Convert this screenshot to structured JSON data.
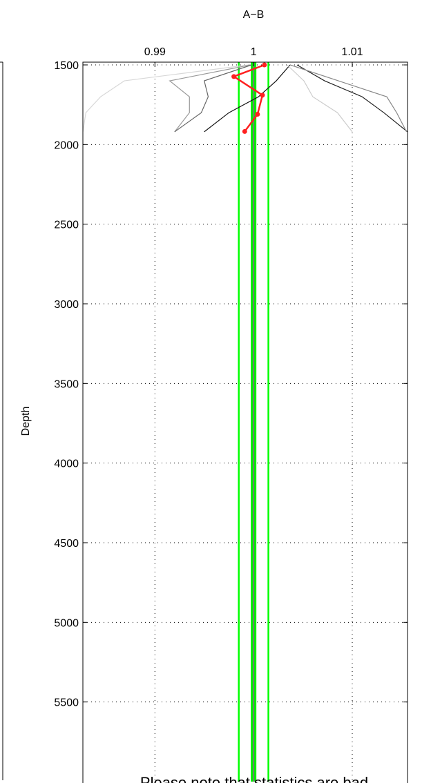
{
  "chart_data": {
    "type": "line",
    "title": "A−B",
    "ylabel": "Depth",
    "annotation": "Please note that statistics are bad",
    "annotation_color": "#ff0000",
    "xlim": [
      0.9827,
      1.0156
    ],
    "xticks": [
      0.99,
      1,
      1.01
    ],
    "ylim": [
      1500,
      6000
    ],
    "yticks": [
      1500,
      2000,
      2500,
      3000,
      3500,
      4000,
      4500,
      5000,
      5500
    ],
    "y_reversed": true,
    "grid": true,
    "vlines": [
      {
        "x": 0.9985,
        "color": "#00ff00",
        "width": 2.5
      },
      {
        "x": 1.0015,
        "color": "#00ff00",
        "width": 2.5
      },
      {
        "x": 1.0,
        "color": "#00ee00",
        "width": 8
      },
      {
        "x": 1.0,
        "color": "#777777",
        "width": 2
      }
    ],
    "series": [
      {
        "color": "#d8d8d8",
        "x": [
          0.9995,
          0.9869,
          0.9845,
          0.983,
          0.9827
        ],
        "values": [
          1500,
          1600,
          1700,
          1800,
          1920
        ]
      },
      {
        "color": "#999999",
        "x": [
          0.9997,
          0.9915,
          0.9935,
          0.9935,
          0.992
        ],
        "values": [
          1500,
          1600,
          1700,
          1800,
          1920
        ]
      },
      {
        "color": "#666666",
        "x": [
          0.9998,
          0.995,
          0.9954,
          0.9947,
          0.992
        ],
        "values": [
          1500,
          1600,
          1700,
          1800,
          1920
        ]
      },
      {
        "color": "#111111",
        "x": [
          1.0037,
          1.0023,
          1.0005,
          0.9975,
          0.995
        ],
        "values": [
          1500,
          1600,
          1700,
          1800,
          1920
        ]
      },
      {
        "color": "#222222",
        "x": [
          1.0044,
          1.0072,
          1.011,
          1.0132,
          1.0156
        ],
        "values": [
          1500,
          1600,
          1700,
          1800,
          1920
        ]
      },
      {
        "color": "#888888",
        "x": [
          1.0037,
          1.0086,
          1.0135,
          1.0145,
          1.0155
        ],
        "values": [
          1500,
          1600,
          1700,
          1800,
          1920
        ]
      },
      {
        "color": "#cccccc",
        "x": [
          1.0034,
          1.0051,
          1.006,
          1.0085,
          1.01
        ],
        "values": [
          1500,
          1600,
          1700,
          1800,
          1920
        ]
      },
      {
        "color": "#ff2020",
        "x": [
          1.0011,
          0.998,
          1.0009,
          1.0004,
          0.9991
        ],
        "values": [
          1500,
          1573,
          1690,
          1810,
          1918
        ],
        "markers": true
      }
    ]
  }
}
